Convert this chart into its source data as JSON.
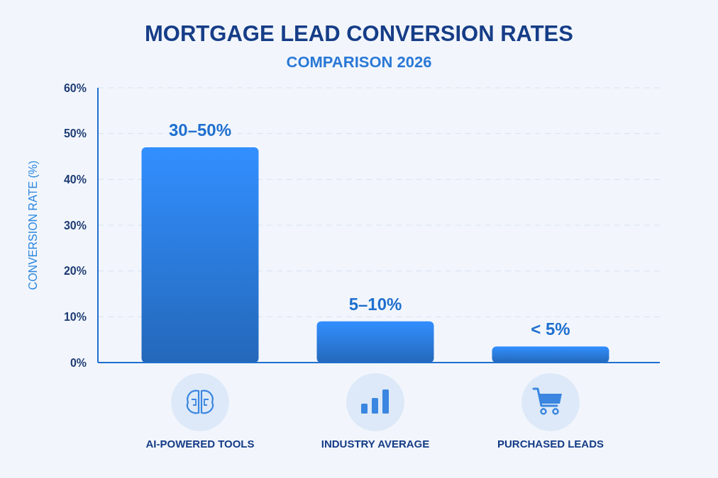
{
  "chart_data": {
    "type": "bar",
    "title": "MORTGAGE LEAD CONVERSION RATES",
    "subtitle": "COMPARISON 2026",
    "ylabel": "CONVERSION RATE (%)",
    "categories": [
      "AI-POWERED TOOLS",
      "INDUSTRY AVERAGE",
      "PURCHASED LEADS"
    ],
    "values": [
      47,
      9,
      3.5
    ],
    "color": "#2a78d6",
    "annotations": [
      {
        "text": "30–50%",
        "x": "AI-POWERED TOOLS",
        "y": 47
      },
      {
        "text": "5–10%",
        "x": "INDUSTRY AVERAGE",
        "y": 9
      },
      {
        "text": "< 5%",
        "x": "PURCHASED LEADS",
        "y": 3.5
      }
    ],
    "ylim": [
      0,
      60
    ],
    "yticks": [
      {
        "value": 0,
        "label": "0%"
      },
      {
        "value": 10,
        "label": "10%"
      },
      {
        "value": 20,
        "label": "20%"
      },
      {
        "value": 30,
        "label": "30%"
      },
      {
        "value": 40,
        "label": "40%"
      },
      {
        "value": 50,
        "label": "50%"
      },
      {
        "value": 60,
        "label": "60%"
      }
    ],
    "grid": "y"
  }
}
